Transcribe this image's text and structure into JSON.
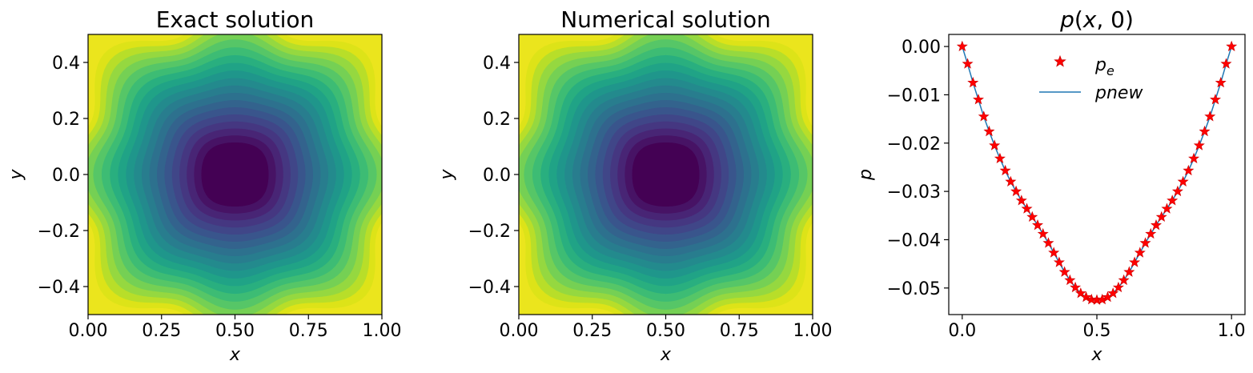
{
  "chart_data": [
    {
      "type": "contour",
      "title": "Exact solution",
      "xlabel": "x",
      "ylabel": "y",
      "xlim": [
        0.0,
        1.0
      ],
      "ylim": [
        -0.5,
        0.5
      ],
      "xticks": [
        "0.00",
        "0.25",
        "0.50",
        "0.75",
        "1.00"
      ],
      "yticks": [
        "−0.4",
        "−0.2",
        "0.0",
        "0.2",
        "0.4"
      ],
      "colormap": "viridis",
      "center": [
        0.5,
        0.0
      ]
    },
    {
      "type": "contour",
      "title": "Numerical solution",
      "xlabel": "x",
      "ylabel": "y",
      "xlim": [
        0.0,
        1.0
      ],
      "ylim": [
        -0.5,
        0.5
      ],
      "xticks": [
        "0.00",
        "0.25",
        "0.50",
        "0.75",
        "1.00"
      ],
      "yticks": [
        "−0.4",
        "−0.2",
        "0.0",
        "0.2",
        "0.4"
      ],
      "colormap": "viridis",
      "center": [
        0.5,
        0.0
      ]
    },
    {
      "type": "line",
      "title": "p(x, 0)",
      "xlabel": "x",
      "ylabel": "p",
      "xlim": [
        -0.05,
        1.05
      ],
      "ylim": [
        -0.0555,
        0.0025
      ],
      "xticks": [
        "0.0",
        "0.5",
        "1.0"
      ],
      "yticks": [
        "0.00",
        "−0.01",
        "−0.02",
        "−0.03",
        "−0.04",
        "−0.05"
      ],
      "legend": "top-center",
      "series": [
        {
          "name": "pe",
          "style": "red-star-markers",
          "color": "#ff0000",
          "x": [
            0.0,
            0.02,
            0.04,
            0.06,
            0.08,
            0.1,
            0.12,
            0.14,
            0.16,
            0.18,
            0.2,
            0.22,
            0.24,
            0.26,
            0.28,
            0.3,
            0.32,
            0.34,
            0.36,
            0.38,
            0.4,
            0.42,
            0.44,
            0.46,
            0.48,
            0.5,
            0.52,
            0.54,
            0.56,
            0.58,
            0.6,
            0.62,
            0.64,
            0.66,
            0.68,
            0.7,
            0.72,
            0.74,
            0.76,
            0.78,
            0.8,
            0.82,
            0.84,
            0.86,
            0.88,
            0.9,
            0.92,
            0.94,
            0.96,
            0.98,
            1.0
          ],
          "y": [
            0.0,
            -0.0036,
            -0.0075,
            -0.011,
            -0.0145,
            -0.0176,
            -0.0205,
            -0.0232,
            -0.0257,
            -0.028,
            -0.03,
            -0.0319,
            -0.0336,
            -0.0353,
            -0.037,
            -0.0388,
            -0.0407,
            -0.0427,
            -0.0447,
            -0.0467,
            -0.0484,
            -0.0499,
            -0.0511,
            -0.0519,
            -0.0524,
            -0.0525,
            -0.0524,
            -0.0519,
            -0.0511,
            -0.0499,
            -0.0484,
            -0.0467,
            -0.0447,
            -0.0427,
            -0.0407,
            -0.0388,
            -0.037,
            -0.0353,
            -0.0336,
            -0.0319,
            -0.03,
            -0.028,
            -0.0257,
            -0.0232,
            -0.0205,
            -0.0176,
            -0.0145,
            -0.011,
            -0.0075,
            -0.0036,
            0.0
          ]
        },
        {
          "name": "pnew",
          "style": "solid-line",
          "color": "#1f77b4",
          "x": [
            0.0,
            0.02,
            0.04,
            0.06,
            0.08,
            0.1,
            0.12,
            0.14,
            0.16,
            0.18,
            0.2,
            0.22,
            0.24,
            0.26,
            0.28,
            0.3,
            0.32,
            0.34,
            0.36,
            0.38,
            0.4,
            0.42,
            0.44,
            0.46,
            0.48,
            0.5,
            0.52,
            0.54,
            0.56,
            0.58,
            0.6,
            0.62,
            0.64,
            0.66,
            0.68,
            0.7,
            0.72,
            0.74,
            0.76,
            0.78,
            0.8,
            0.82,
            0.84,
            0.86,
            0.88,
            0.9,
            0.92,
            0.94,
            0.96,
            0.98,
            1.0
          ],
          "y": [
            0.0,
            -0.0036,
            -0.0075,
            -0.011,
            -0.0145,
            -0.0176,
            -0.0205,
            -0.0232,
            -0.0257,
            -0.028,
            -0.03,
            -0.0319,
            -0.0336,
            -0.0353,
            -0.037,
            -0.0388,
            -0.0407,
            -0.0427,
            -0.0447,
            -0.0467,
            -0.0484,
            -0.0499,
            -0.0511,
            -0.0519,
            -0.0524,
            -0.0525,
            -0.0524,
            -0.0519,
            -0.0511,
            -0.0499,
            -0.0484,
            -0.0467,
            -0.0447,
            -0.0427,
            -0.0407,
            -0.0388,
            -0.037,
            -0.0353,
            -0.0336,
            -0.0319,
            -0.03,
            -0.028,
            -0.0257,
            -0.0232,
            -0.0205,
            -0.0176,
            -0.0145,
            -0.011,
            -0.0075,
            -0.0036,
            0.0
          ]
        }
      ]
    }
  ]
}
